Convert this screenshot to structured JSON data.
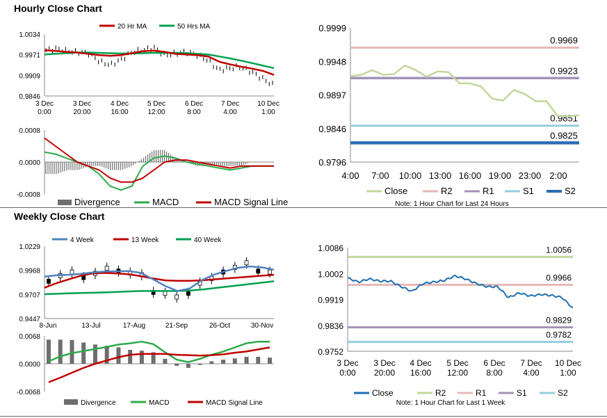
{
  "sections": {
    "hourly_title": "Hourly Close Chart",
    "weekly_title": "Weekly Close Chart"
  },
  "colors": {
    "ma20": "#c00000",
    "ma50": "#00a050",
    "ma4": "#4f81bd",
    "ma13": "#c00000",
    "ma40": "#00a050",
    "macd": "#2daa4a",
    "signal": "#c00000",
    "divergence": "#6e6e6e",
    "close_light": "#c3d69b",
    "close_blue": "#1f6fb2",
    "r2_light": "#e6b8b7",
    "r1_purple": "#a193b8",
    "s1_cyan": "#93cddd",
    "s2_blue": "#2e6bb5",
    "r2_green": "#c3d69b",
    "r1_pink": "#e6b8b7",
    "s1_purple": "#a193b8",
    "s2_cyan": "#93cddd"
  },
  "chart_data": [
    {
      "id": "hourly-price",
      "type": "line",
      "title": "Hourly Close Chart",
      "ylim": [
        0.9846,
        1.0034
      ],
      "y_ticks": [
        "1.0034",
        "0.9971",
        "0.9909",
        "0.9846"
      ],
      "x_ticks": [
        [
          "3 Dec",
          "0:00"
        ],
        [
          "3 Dec",
          "20:00"
        ],
        [
          "4 Dec",
          "16:00"
        ],
        [
          "5 Dec",
          "12:00"
        ],
        [
          "6 Dec",
          "8:00"
        ],
        [
          "7 Dec",
          "4:00"
        ],
        [
          "10 Dec",
          "1:00"
        ]
      ],
      "legend": [
        "20 Hr MA",
        "50 Hrs MA"
      ],
      "series": [
        {
          "name": "20 Hr MA",
          "values": [
            0.9985,
            0.9983,
            0.998,
            0.9978,
            0.9974,
            0.997,
            0.9968,
            0.997,
            0.9976,
            0.9982,
            0.9984,
            0.998,
            0.9974,
            0.9972,
            0.997,
            0.9966,
            0.995,
            0.9942,
            0.9935,
            0.9929,
            0.9922,
            0.991
          ]
        },
        {
          "name": "50 Hrs MA",
          "values": [
            0.9972,
            0.9974,
            0.9976,
            0.9978,
            0.9978,
            0.9977,
            0.9976,
            0.9975,
            0.9975,
            0.9976,
            0.9977,
            0.9977,
            0.9977,
            0.9976,
            0.9974,
            0.9972,
            0.9966,
            0.996,
            0.9953,
            0.9946,
            0.9938,
            0.9931
          ]
        },
        {
          "name": "Close",
          "values": [
            0.9985,
            0.999,
            0.9982,
            0.9979,
            0.9975,
            0.995,
            0.994,
            0.9957,
            0.998,
            0.9985,
            0.9993,
            0.997,
            0.9975,
            0.998,
            0.997,
            0.9955,
            0.9925,
            0.993,
            0.9935,
            0.992,
            0.99,
            0.988
          ]
        }
      ]
    },
    {
      "id": "hourly-macd",
      "type": "line",
      "ylim": [
        -0.0008,
        0.0008
      ],
      "y_ticks": [
        "0.0008",
        "0.0000",
        "-0.0008"
      ],
      "legend": [
        "Divergence",
        "MACD",
        "MACD Signal Line"
      ],
      "series": [
        {
          "name": "MACD",
          "values": [
            0.00025,
            0.0002,
            0.0001,
            0.0,
            -0.0001,
            -0.0003,
            -0.0006,
            -0.0007,
            -0.0006,
            -0.0001,
            0.0001,
            0.00015,
            0.0001,
            0.0,
            -5e-05,
            -0.0001,
            -0.00015,
            -0.0002,
            -0.00015,
            -0.0001,
            -0.0001,
            -0.0001
          ]
        },
        {
          "name": "MACD Signal Line",
          "values": [
            0.0006,
            0.0004,
            0.0002,
            0.0,
            -0.0001,
            -0.0002,
            -0.0004,
            -0.0005,
            -0.0005,
            -0.0004,
            -0.0002,
            0.0,
            5e-05,
            5e-05,
            0.0,
            -5e-05,
            -0.0001,
            -0.00015,
            -0.0001,
            -0.0001,
            -0.0001,
            -0.0001
          ]
        },
        {
          "name": "Divergence",
          "values": [
            -0.0003,
            -0.0003,
            -0.0002,
            -0.0002,
            -0.0001,
            -0.0001,
            -0.0002,
            -0.0002,
            -0.0001,
            0.0001,
            0.0003,
            0.0003,
            0.0001,
            0.0,
            -0.0001,
            -0.0001,
            -0.0001,
            -0.0001,
            -0.0001,
            0.0,
            0.0,
            0.0
          ]
        }
      ]
    },
    {
      "id": "hourly-levels",
      "type": "line",
      "ylim": [
        0.9796,
        0.9999
      ],
      "y_ticks": [
        "0.9999",
        "0.9948",
        "0.9897",
        "0.9846",
        "0.9796"
      ],
      "x_ticks": [
        "4:00",
        "7:00",
        "10:00",
        "13:00",
        "16:00",
        "19:00",
        "23:00",
        "2:00"
      ],
      "legend": [
        "Close",
        "R2",
        "R1",
        "S1",
        "S2"
      ],
      "note": "Note: 1 Hour Chart for Last 24 Hours",
      "levels": [
        {
          "name": "R2",
          "value": 0.9969,
          "label": "0.9969"
        },
        {
          "name": "R1",
          "value": 0.9923,
          "label": "0.9923"
        },
        {
          "name": "S1",
          "value": 0.9851,
          "label": "0.9851"
        },
        {
          "name": "S2",
          "value": 0.9825,
          "label": "0.9825"
        }
      ],
      "series": [
        {
          "name": "Close",
          "values": [
            0.9926,
            0.9928,
            0.9935,
            0.9928,
            0.9929,
            0.9942,
            0.9935,
            0.9925,
            0.9933,
            0.9932,
            0.9915,
            0.9915,
            0.991,
            0.9892,
            0.9889,
            0.9905,
            0.9899,
            0.9888,
            0.9888,
            0.9866,
            0.9865,
            0.9867
          ]
        }
      ]
    },
    {
      "id": "weekly-price",
      "type": "line",
      "title": "Weekly Close Chart",
      "ylim": [
        0.9447,
        1.0229
      ],
      "y_ticks": [
        "1.0229",
        "0.9968",
        "0.9707",
        "0.9447"
      ],
      "x_ticks": [
        "8-Jun",
        "13-Jul",
        "17-Aug",
        "21-Sep",
        "26-Oct",
        "30-Nov"
      ],
      "legend": [
        "4 Week",
        "13 Week",
        "40 Week"
      ],
      "series": [
        {
          "name": "4 Week",
          "values": [
            0.99,
            0.9915,
            0.992,
            0.993,
            0.9945,
            0.9955,
            0.9958,
            0.996,
            0.994,
            0.987,
            0.98,
            0.9745,
            0.977,
            0.986,
            0.992,
            0.996,
            0.9995,
            1.001,
            1.0,
            0.9975
          ]
        },
        {
          "name": "13 Week",
          "values": [
            0.978,
            0.983,
            0.987,
            0.991,
            0.9935,
            0.994,
            0.9935,
            0.9925,
            0.9905,
            0.988,
            0.986,
            0.9855,
            0.9855,
            0.986,
            0.987,
            0.988,
            0.989,
            0.99,
            0.991,
            0.992
          ]
        },
        {
          "name": "40 Week",
          "values": [
            0.971,
            0.9715,
            0.972,
            0.9723,
            0.9726,
            0.973,
            0.9735,
            0.974,
            0.9745,
            0.9745,
            0.9745,
            0.9745,
            0.975,
            0.976,
            0.9775,
            0.979,
            0.9805,
            0.982,
            0.9835,
            0.985
          ]
        },
        {
          "name": "Close",
          "values": [
            0.985,
            0.991,
            0.995,
            0.989,
            0.9935,
            0.999,
            0.996,
            0.994,
            0.992,
            0.973,
            0.972,
            0.968,
            0.972,
            0.983,
            0.988,
            0.995,
            1.0,
            1.005,
            0.996,
            0.995
          ]
        }
      ]
    },
    {
      "id": "weekly-macd",
      "type": "line",
      "ylim": [
        -0.0068,
        0.0068
      ],
      "y_ticks": [
        "0.0068",
        "0.0000",
        "-0.0068"
      ],
      "legend": [
        "Divergence",
        "MACD",
        "MACD Signal Line"
      ],
      "series": [
        {
          "name": "MACD",
          "values": [
            0.0006,
            0.0018,
            0.0026,
            0.0031,
            0.0036,
            0.0041,
            0.0047,
            0.005,
            0.0054,
            0.0048,
            0.0028,
            0.001,
            0.0004,
            0.0012,
            0.0022,
            0.003,
            0.004,
            0.005,
            0.0054,
            0.0054
          ]
        },
        {
          "name": "MACD Signal Line",
          "values": [
            -0.0045,
            -0.0034,
            -0.0022,
            -0.001,
            0.0,
            0.0008,
            0.0016,
            0.0022,
            0.0024,
            0.0024,
            0.0024,
            0.0022,
            0.0021,
            0.002,
            0.0021,
            0.0023,
            0.0027,
            0.003,
            0.0035,
            0.004
          ]
        },
        {
          "name": "Divergence",
          "values": [
            0.0059,
            0.0059,
            0.0058,
            0.0052,
            0.0047,
            0.0044,
            0.004,
            0.0034,
            0.0032,
            0.0028,
            0.0012,
            -0.0005,
            -0.001,
            -0.0003,
            0.0006,
            0.001,
            0.0013,
            0.0017,
            0.0017,
            0.0015
          ]
        }
      ]
    },
    {
      "id": "weekly-levels",
      "type": "line",
      "ylim": [
        0.9752,
        1.0086
      ],
      "y_ticks": [
        "1.0086",
        "1.0002",
        "0.9919",
        "0.9836",
        "0.9752"
      ],
      "x_ticks": [
        [
          "3 Dec",
          "0:00"
        ],
        [
          "3 Dec",
          "20:00"
        ],
        [
          "4 Dec",
          "16:00"
        ],
        [
          "5 Dec",
          "12:00"
        ],
        [
          "6 Dec",
          "8:00"
        ],
        [
          "7 Dec",
          "4:00"
        ],
        [
          "10 Dec",
          "1:00"
        ]
      ],
      "legend": [
        "Close",
        "R2",
        "R1",
        "S1",
        "S2"
      ],
      "note": "Note: 1 Hour Chart for Last 1 Week",
      "levels": [
        {
          "name": "R2",
          "value": 1.0056,
          "label": "1.0056"
        },
        {
          "name": "R1",
          "value": 0.9966,
          "label": "0.9966"
        },
        {
          "name": "S1",
          "value": 0.9829,
          "label": "0.9829"
        },
        {
          "name": "S2",
          "value": 0.9782,
          "label": "0.9782"
        }
      ],
      "series": [
        {
          "name": "Close",
          "values": [
            0.9988,
            0.9975,
            0.9985,
            0.9978,
            0.9978,
            0.996,
            0.9945,
            0.997,
            0.9975,
            0.998,
            0.9995,
            0.9985,
            0.997,
            0.996,
            0.996,
            0.9925,
            0.994,
            0.993,
            0.9935,
            0.9932,
            0.9925,
            0.989
          ]
        }
      ]
    }
  ]
}
